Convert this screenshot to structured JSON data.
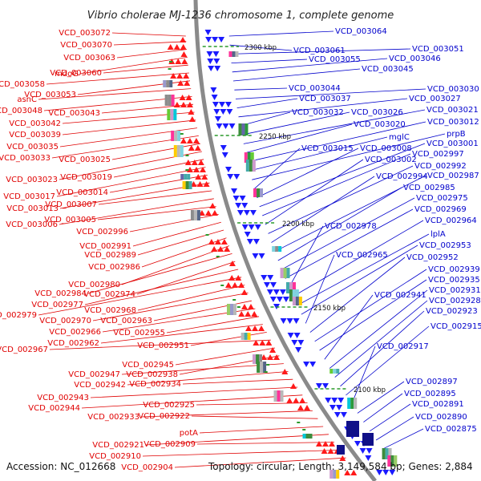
{
  "title": "Vibrio cholerae MJ-1236 chromosome 1, complete genome",
  "accession_text": "Accession: NC_012668",
  "info_text": "Topology: circular; Length: 3,149,584 bp; Genes: 2,884",
  "colors": {
    "left_labels": "#e00000",
    "right_labels": "#0000cc",
    "backbone": "#8a8a8a"
  },
  "scale_marks": [
    "2300 kbp",
    "2250 kbp",
    "2200 kbp",
    "2150 kbp",
    "2100 kbp"
  ],
  "left_labels": [
    "VCD_003072",
    "VCD_003070",
    "VCD_003063",
    "mdoG",
    "VCD_003060",
    "VCD_003058",
    "VCD_003053",
    "asnC",
    "VCD_003048",
    "VCD_003043",
    "VCD_003042",
    "VCD_003039",
    "VCD_003035",
    "VCD_003033",
    "VCD_003025",
    "VCD_003023",
    "VCD_003019",
    "VCD_003017",
    "VCD_003014",
    "VCD_003013",
    "VCD_003007",
    "VCD_003006",
    "VCD_003005",
    "VCD_002996",
    "VCD_002991",
    "VCD_002989",
    "VCD_002986",
    "VCD_002980",
    "VCD_002984",
    "VCD_002974",
    "VCD_002977",
    "VCD_002979",
    "VCD_002968",
    "VCD_002970",
    "VCD_002963",
    "VCD_002966",
    "VCD_002955",
    "VCD_002962",
    "VCD_002951",
    "VCD_002967",
    "VCD_002945",
    "VCD_002938",
    "VCD_002947",
    "VCD_002942",
    "VCD_002934",
    "VCD_002943",
    "VCD_002944",
    "VCD_002925",
    "VCD_002933",
    "VCD_002922",
    "potA",
    "VCD_002921",
    "VCD_002909",
    "VCD_002910",
    "VCD_002904"
  ],
  "right_labels": [
    "VCD_003064",
    "VCD_003061",
    "VCD_003051",
    "VCD_003055",
    "VCD_003046",
    "VCD_003045",
    "VCD_003044",
    "VCD_003030",
    "VCD_003037",
    "VCD_003027",
    "VCD_003032",
    "VCD_003026",
    "VCD_003021",
    "VCD_003020",
    "VCD_003012",
    "mglC",
    "prpB",
    "VCD_003015",
    "VCD_003008",
    "VCD_003001",
    "VCD_002997",
    "VCD_003002",
    "VCD_002992",
    "VCD_002994",
    "VCD_002987",
    "VCD_002985",
    "VCD_002975",
    "VCD_002969",
    "VCD_002978",
    "VCD_002964",
    "lplA",
    "VCD_002953",
    "VCD_002965",
    "VCD_002952",
    "VCD_002939",
    "VCD_002935",
    "VCD_002941",
    "VCD_002931",
    "VCD_002928",
    "VCD_002923",
    "VCD_002915",
    "VCD_002917",
    "VCD_002897",
    "VCD_002895",
    "VCD_002891",
    "VCD_002890",
    "VCD_002875"
  ]
}
